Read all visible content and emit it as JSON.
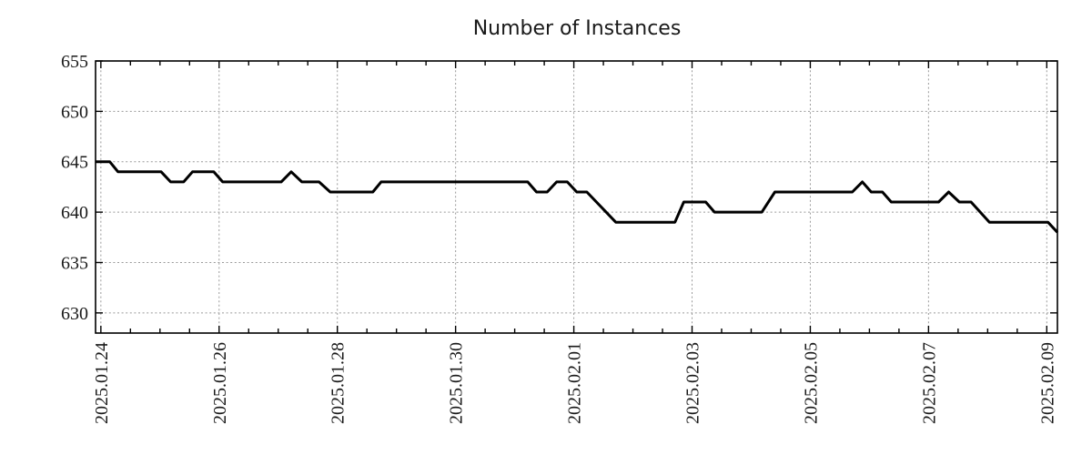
{
  "chart_data": {
    "type": "line",
    "title": "Number of Instances",
    "series_name": "instances",
    "line_color": "#000000",
    "grid_color": "#9a9a9a",
    "axis_color": "#000000",
    "legend": "none",
    "grid": "on",
    "x_tick_labels": [
      "2025.01.24",
      "2025.01.26",
      "2025.01.28",
      "2025.01.30",
      "2025.02.01",
      "2025.02.03",
      "2025.02.05",
      "2025.02.07",
      "2025.02.09"
    ],
    "x_tick_day_offsets": [
      0,
      2,
      4,
      6,
      8,
      10,
      12,
      14,
      16
    ],
    "x_minor_tick_interval_days": 0.5,
    "y_tick_labels": [
      "655",
      "650",
      "645",
      "640",
      "635",
      "630"
    ],
    "y_tick_values": [
      655,
      650,
      645,
      640,
      635,
      630
    ],
    "ylim": [
      628,
      655
    ],
    "xlim_days": [
      -0.09,
      16.18
    ],
    "points_format": "[days_since_2025.01.24, value]",
    "points": [
      [
        -0.09,
        645
      ],
      [
        0.15,
        645
      ],
      [
        0.29,
        644
      ],
      [
        1.02,
        644
      ],
      [
        1.18,
        643
      ],
      [
        1.4,
        643
      ],
      [
        1.55,
        644
      ],
      [
        1.91,
        644
      ],
      [
        2.06,
        643
      ],
      [
        3.05,
        643
      ],
      [
        3.22,
        644
      ],
      [
        3.4,
        643
      ],
      [
        3.69,
        643
      ],
      [
        3.88,
        642
      ],
      [
        4.6,
        642
      ],
      [
        4.74,
        643
      ],
      [
        7.22,
        643
      ],
      [
        7.37,
        642
      ],
      [
        7.55,
        642
      ],
      [
        7.71,
        643
      ],
      [
        7.89,
        643
      ],
      [
        8.05,
        642
      ],
      [
        8.22,
        642
      ],
      [
        8.71,
        639
      ],
      [
        9.71,
        639
      ],
      [
        9.86,
        641
      ],
      [
        10.23,
        641
      ],
      [
        10.38,
        640
      ],
      [
        11.18,
        640
      ],
      [
        11.4,
        642
      ],
      [
        12.71,
        642
      ],
      [
        12.88,
        643
      ],
      [
        13.03,
        642
      ],
      [
        13.22,
        642
      ],
      [
        13.37,
        641
      ],
      [
        14.17,
        641
      ],
      [
        14.34,
        642
      ],
      [
        14.52,
        641
      ],
      [
        14.72,
        641
      ],
      [
        15.03,
        639
      ],
      [
        16.02,
        639
      ],
      [
        16.18,
        638
      ]
    ]
  }
}
